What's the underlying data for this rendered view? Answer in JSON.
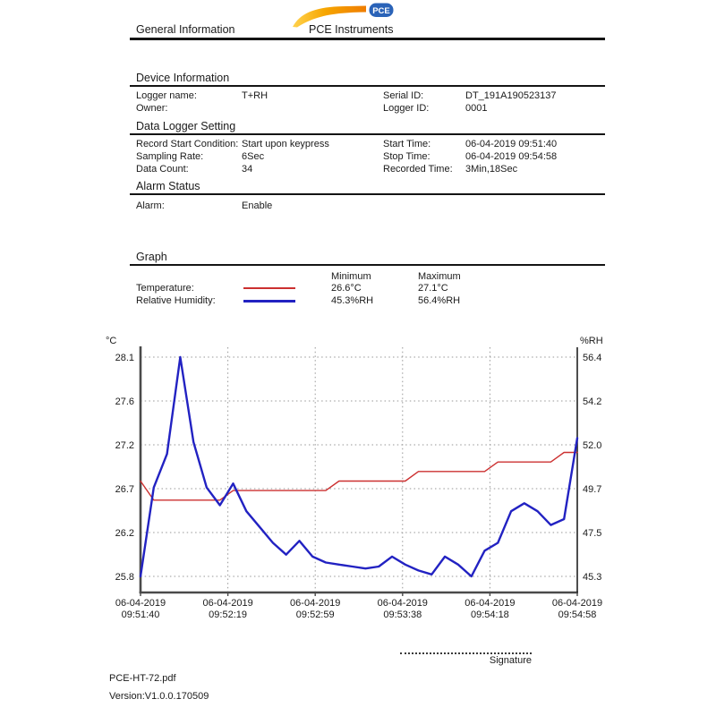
{
  "header": {
    "left_title": "General Information",
    "brand": "PCE Instruments",
    "logo_badge_text": "PCE",
    "logo_badge_color": "#2a63b8",
    "logo_swoosh_colors": [
      "#ffd24d",
      "#f6a500",
      "#ef7d00"
    ]
  },
  "device_information": {
    "title": "Device Information",
    "rows": [
      {
        "label": "Logger name:",
        "value": "T+RH",
        "label2": "Serial ID:",
        "value2": "DT_191A190523137"
      },
      {
        "label": "Owner:",
        "value": "",
        "label2": "Logger ID:",
        "value2": "0001"
      }
    ]
  },
  "data_logger_setting": {
    "title": "Data Logger Setting",
    "rows": [
      {
        "label": "Record Start Condition:",
        "value": "Start upon keypress",
        "label2": "Start Time:",
        "value2": "06-04-2019 09:51:40"
      },
      {
        "label": "Sampling Rate:",
        "value": "6Sec",
        "label2": "Stop Time:",
        "value2": "06-04-2019 09:54:58"
      },
      {
        "label": "Data Count:",
        "value": "34",
        "label2": "Recorded Time:",
        "value2": "3Min,18Sec"
      }
    ]
  },
  "alarm_status": {
    "title": "Alarm Status",
    "rows": [
      {
        "label": "Alarm:",
        "value": "Enable"
      }
    ]
  },
  "graph_section": {
    "title": "Graph",
    "legend": {
      "min_header": "Minimum",
      "max_header": "Maximum",
      "rows": [
        {
          "label": "Temperature:",
          "min": "26.6°C",
          "max": "27.1°C"
        },
        {
          "label": "Relative Humidity:",
          "min": "45.3%RH",
          "max": "56.4%RH"
        }
      ]
    }
  },
  "chart_data": {
    "type": "line",
    "title": "",
    "grid": true,
    "legend_position": "above-chart",
    "left_axis": {
      "label": "°C",
      "min": 25.8,
      "max": 28.1,
      "ticks": [
        "28.1",
        "27.6",
        "27.2",
        "26.7",
        "26.2",
        "25.8"
      ]
    },
    "right_axis": {
      "label": "%RH",
      "min": 45.3,
      "max": 56.4,
      "ticks": [
        "56.4",
        "54.2",
        "52.0",
        "49.7",
        "47.5",
        "45.3"
      ]
    },
    "x_tick_labels": [
      {
        "date": "06-04-2019",
        "time": "09:51:40"
      },
      {
        "date": "06-04-2019",
        "time": "09:52:19"
      },
      {
        "date": "06-04-2019",
        "time": "09:52:59"
      },
      {
        "date": "06-04-2019",
        "time": "09:53:38"
      },
      {
        "date": "06-04-2019",
        "time": "09:54:18"
      },
      {
        "date": "06-04-2019",
        "time": "09:54:58"
      }
    ],
    "sampling_interval_seconds": 6,
    "series": [
      {
        "name": "Temperature",
        "unit": "°C",
        "axis": "left",
        "color": "#cc3030",
        "values": [
          26.8,
          26.6,
          26.6,
          26.6,
          26.6,
          26.6,
          26.6,
          26.7,
          26.7,
          26.7,
          26.7,
          26.7,
          26.7,
          26.7,
          26.7,
          26.8,
          26.8,
          26.8,
          26.8,
          26.8,
          26.8,
          26.9,
          26.9,
          26.9,
          26.9,
          26.9,
          26.9,
          27.0,
          27.0,
          27.0,
          27.0,
          27.0,
          27.1,
          27.1
        ]
      },
      {
        "name": "Relative Humidity",
        "unit": "%RH",
        "axis": "right",
        "color": "#2222c2",
        "values": [
          45.3,
          49.8,
          51.5,
          56.4,
          52.1,
          49.8,
          48.9,
          50.0,
          48.6,
          47.8,
          47.0,
          46.4,
          47.1,
          46.3,
          46.0,
          45.9,
          45.8,
          45.7,
          45.8,
          46.3,
          45.9,
          45.6,
          45.4,
          46.3,
          45.9,
          45.3,
          46.6,
          47.0,
          48.6,
          49.0,
          48.6,
          47.9,
          48.2,
          52.3
        ]
      }
    ]
  },
  "signature": {
    "label": "Signature"
  },
  "footer": {
    "filename": "PCE-HT-72.pdf",
    "version": "Version:V1.0.0.170509"
  }
}
